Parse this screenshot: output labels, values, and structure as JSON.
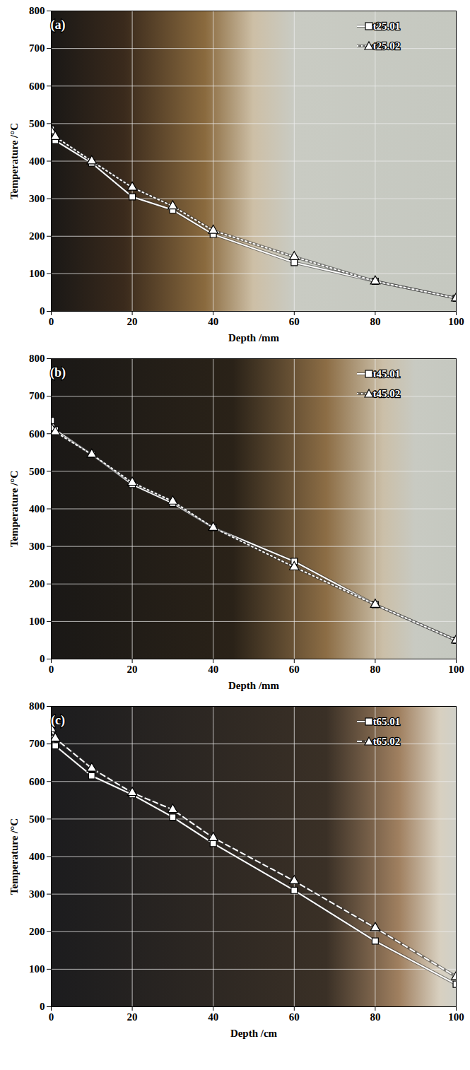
{
  "chart_data": [
    {
      "type": "line",
      "title": "(a)",
      "x_label": "Depth /mm",
      "y_label": "Temperature /°C",
      "x": [
        0,
        1,
        10,
        20,
        30,
        40,
        60,
        80,
        100
      ],
      "series": [
        {
          "name": "t25.01",
          "color": "#ffffff",
          "marker": "square",
          "line_style": "solid",
          "values": [
            485,
            455,
            395,
            305,
            270,
            205,
            130,
            80,
            35
          ]
        },
        {
          "name": "t25.02",
          "color": "#ffffff",
          "marker": "triangle",
          "line_style": "dotted",
          "values": [
            480,
            465,
            400,
            330,
            280,
            215,
            145,
            80,
            35
          ]
        }
      ],
      "xlim": [
        0,
        100
      ],
      "xticks": [
        0,
        20,
        40,
        60,
        80,
        100
      ],
      "ylim": [
        0,
        800
      ],
      "yticks": [
        0,
        100,
        200,
        300,
        400,
        500,
        600,
        700,
        800
      ],
      "grid": true,
      "legend": "top-right"
    },
    {
      "type": "line",
      "title": "(b)",
      "x_label": "Depth /mm",
      "y_label": "Temperature /°C",
      "x": [
        0,
        1,
        10,
        20,
        30,
        40,
        60,
        80,
        100
      ],
      "series": [
        {
          "name": "t45.01",
          "color": "#ffffff",
          "marker": "square",
          "line_style": "solid",
          "values": [
            635,
            610,
            545,
            465,
            415,
            350,
            260,
            145,
            50
          ]
        },
        {
          "name": "t45.02",
          "color": "#ffffff",
          "marker": "triangle",
          "line_style": "dotted",
          "values": [
            615,
            605,
            545,
            470,
            420,
            350,
            245,
            145,
            50
          ]
        }
      ],
      "xlim": [
        0,
        100
      ],
      "xticks": [
        0,
        20,
        40,
        60,
        80,
        100
      ],
      "ylim": [
        0,
        800
      ],
      "yticks": [
        0,
        100,
        200,
        300,
        400,
        500,
        600,
        700,
        800
      ],
      "grid": true,
      "legend": "top-right"
    },
    {
      "type": "line",
      "title": "(c)",
      "x_label": "Depth /cm",
      "y_label": "Temperature /°C",
      "x": [
        0,
        1,
        10,
        20,
        30,
        40,
        60,
        80,
        100
      ],
      "series": [
        {
          "name": "t65.01",
          "color": "#ffffff",
          "marker": "square",
          "line_style": "solid",
          "values": [
            715,
            695,
            615,
            565,
            505,
            435,
            310,
            175,
            60
          ]
        },
        {
          "name": "t65.02",
          "color": "#ffffff",
          "marker": "triangle",
          "line_style": "dashed",
          "values": [
            740,
            715,
            635,
            570,
            525,
            450,
            335,
            210,
            80
          ]
        }
      ],
      "xlim": [
        0,
        100
      ],
      "xticks": [
        0,
        20,
        40,
        60,
        80,
        100
      ],
      "ylim": [
        0,
        800
      ],
      "yticks": [
        0,
        100,
        200,
        300,
        400,
        500,
        600,
        700,
        800
      ],
      "grid": true,
      "legend": "top-right"
    }
  ]
}
